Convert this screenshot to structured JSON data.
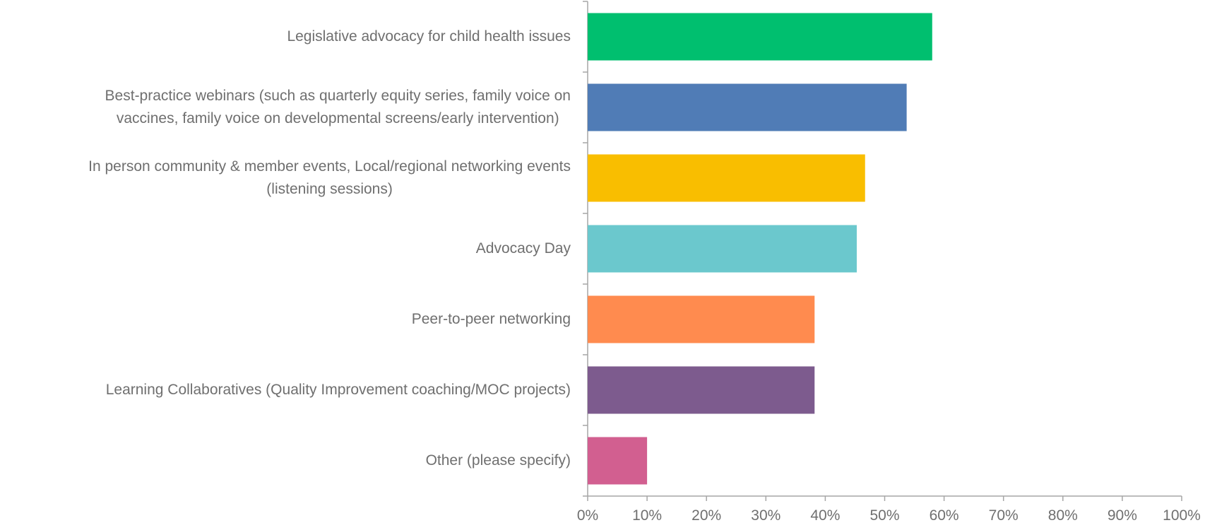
{
  "chart_data": {
    "type": "barh",
    "categories": [
      "Legislative advocacy for child health issues",
      "Best-practice webinars (such as quarterly equity series, family voice on\nvaccines, family voice on developmental screens/early intervention)",
      "In person community & member events, Local/regional networking events\n(listening sessions)",
      "Advocacy Day",
      "Peer-to-peer networking",
      "Learning Collaboratives (Quality Improvement coaching/MOC projects)",
      "Other (please specify)"
    ],
    "values": [
      58,
      53.7,
      46.7,
      45.3,
      38.2,
      38.2,
      10
    ],
    "colors": [
      "#00bf6f",
      "#507cb6",
      "#f9be00",
      "#6bc8cd",
      "#ff8b4f",
      "#7d5b8e",
      "#d25f90"
    ],
    "xlim": [
      0,
      100
    ],
    "xticks": [
      {
        "value": 0,
        "label": "0%"
      },
      {
        "value": 10,
        "label": "10%"
      },
      {
        "value": 20,
        "label": "20%"
      },
      {
        "value": 30,
        "label": "30%"
      },
      {
        "value": 40,
        "label": "40%"
      },
      {
        "value": 50,
        "label": "50%"
      },
      {
        "value": 60,
        "label": "60%"
      },
      {
        "value": 70,
        "label": "70%"
      },
      {
        "value": 80,
        "label": "80%"
      },
      {
        "value": 90,
        "label": "90%"
      },
      {
        "value": 100,
        "label": "100%"
      }
    ],
    "grid": false
  }
}
